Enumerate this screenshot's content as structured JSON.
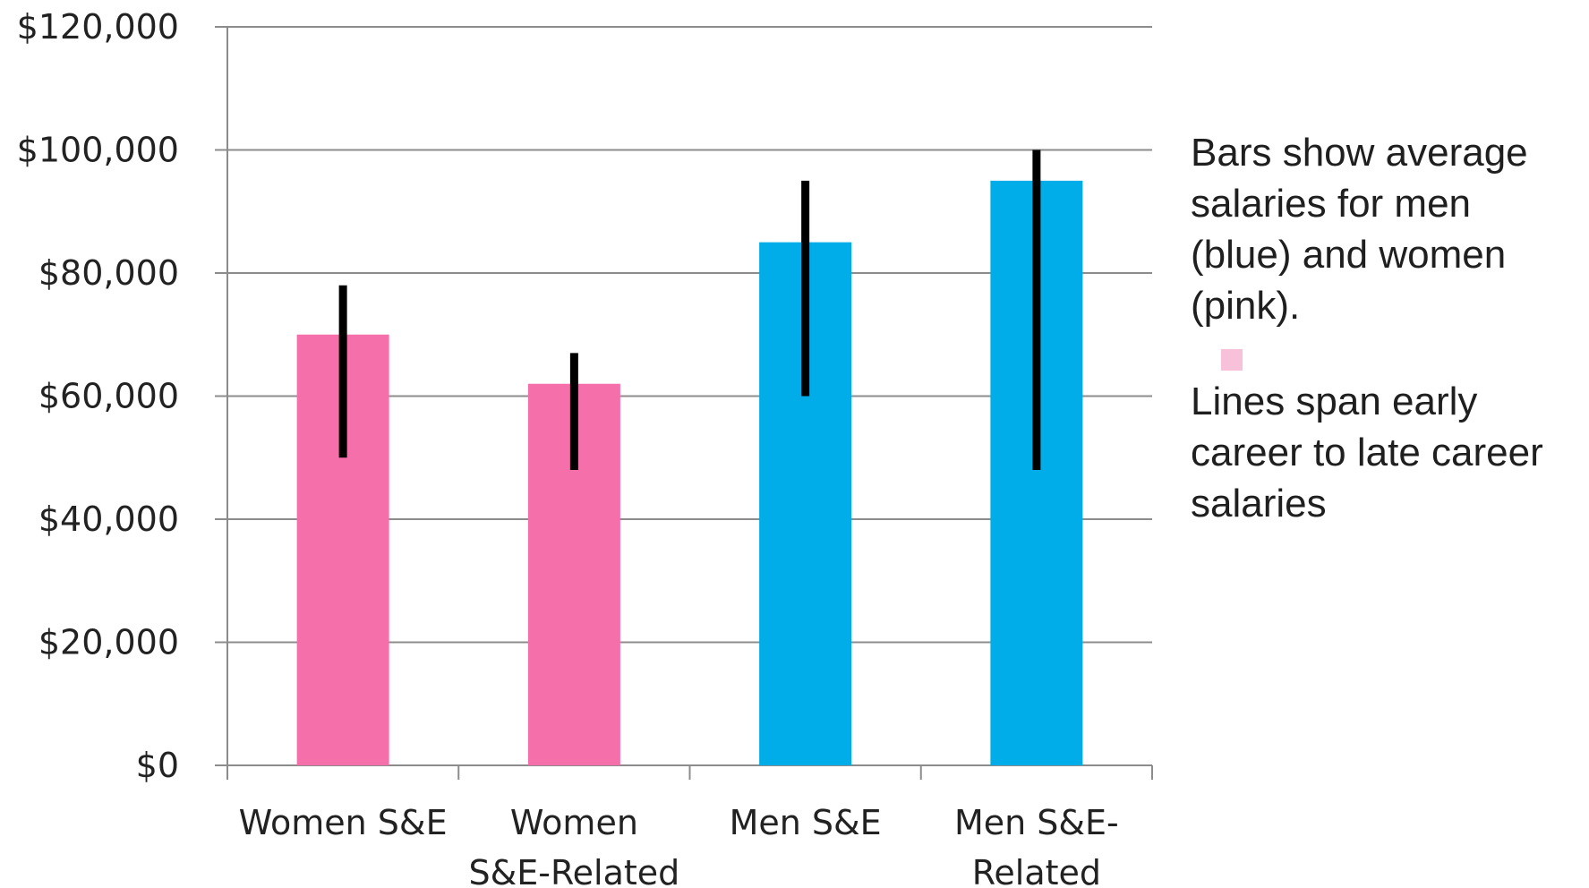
{
  "colors": {
    "women": "#f56fab",
    "men": "#00ade9",
    "error_line": "#000000",
    "grid": "#8c8c8c",
    "legend_swatch": "#f7c1d9"
  },
  "annotation": {
    "line1": "Bars show average salaries for men (blue) and women (pink).",
    "line2": "Lines span early career to late career salaries"
  },
  "chart_data": {
    "type": "bar",
    "title": "",
    "xlabel": "",
    "ylabel": "",
    "ylim": [
      0,
      120000
    ],
    "y_ticks": [
      0,
      20000,
      40000,
      60000,
      80000,
      100000,
      120000
    ],
    "y_tick_labels": [
      "$0",
      "$20,000",
      "$40,000",
      "$60,000",
      "$80,000",
      "$100,000",
      "$120,000"
    ],
    "grid": true,
    "categories": [
      [
        "Women S&E"
      ],
      [
        "Women",
        "S&E-Related"
      ],
      [
        "Men S&E"
      ],
      [
        "Men S&E-",
        "Related"
      ]
    ],
    "values": [
      70000,
      62000,
      85000,
      95000
    ],
    "bar_colors": [
      "women",
      "women",
      "men",
      "men"
    ],
    "ranges": [
      [
        50000,
        78000
      ],
      [
        48000,
        67000
      ],
      [
        60000,
        95000
      ],
      [
        48000,
        100000
      ]
    ]
  }
}
